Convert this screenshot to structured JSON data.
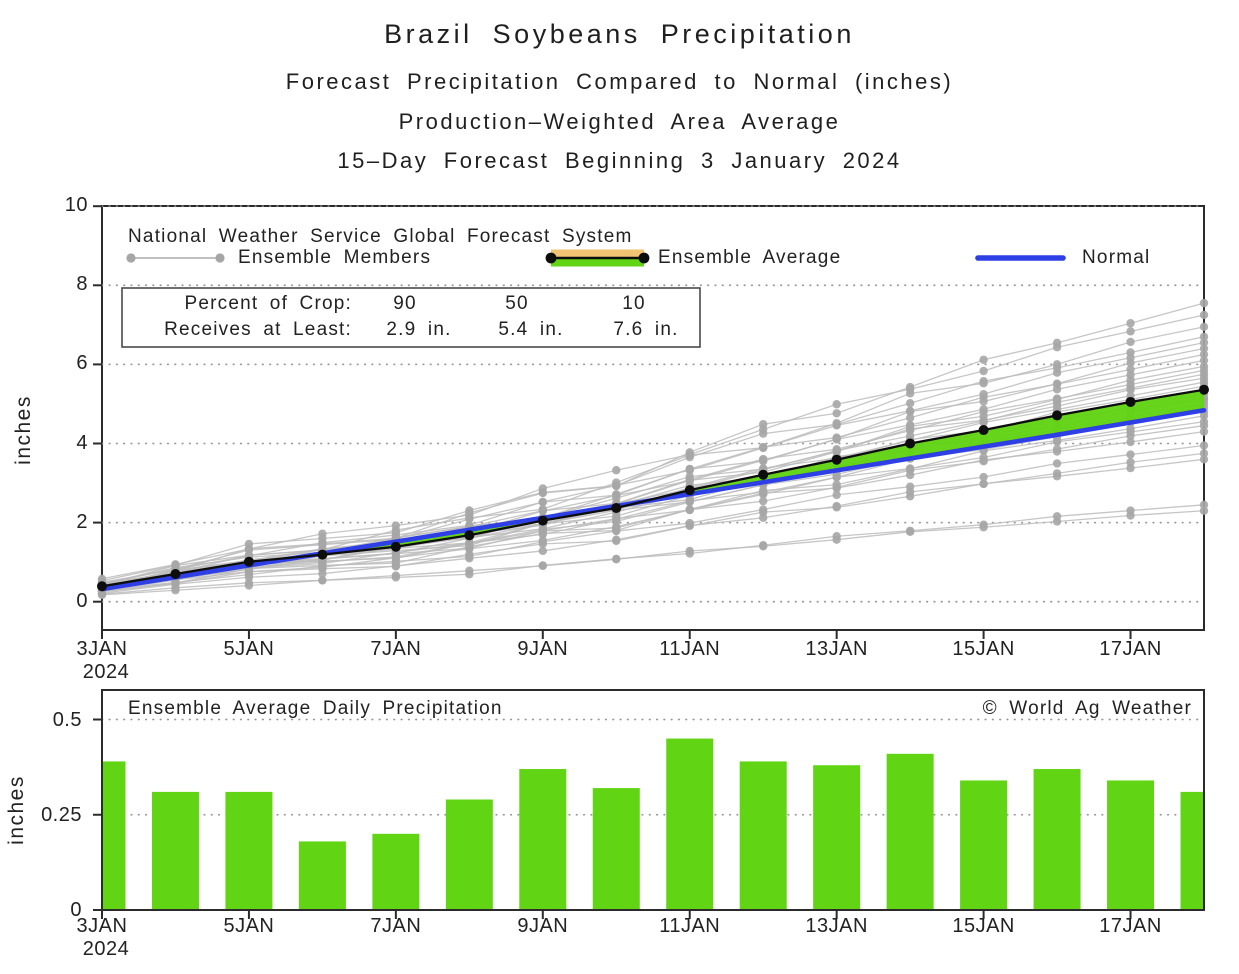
{
  "titles": {
    "line1": "Brazil Soybeans Precipitation",
    "line2": "Forecast Precipitation Compared to Normal (inches)",
    "line3": "Production–Weighted Area Average",
    "line4": "15–Day Forecast Beginning 3 January 2024"
  },
  "top_chart": {
    "source_label": "National Weather Service Global Forecast System",
    "legend": [
      {
        "label": "Ensemble Members"
      },
      {
        "label": "Ensemble Average"
      },
      {
        "label": "Normal"
      }
    ],
    "stats_box": {
      "row1_label": "Percent of Crop:",
      "row1_values": [
        "90",
        "50",
        "10"
      ],
      "row2_label": "Receives at Least:",
      "row2_values": [
        "2.9 in.",
        "5.4 in.",
        "7.6 in."
      ]
    },
    "ylabel": "inches",
    "ytick_labels": [
      "0",
      "2",
      "4",
      "6",
      "8",
      "10"
    ],
    "xtick_labels": [
      "3JAN",
      "5JAN",
      "7JAN",
      "9JAN",
      "11JAN",
      "13JAN",
      "15JAN",
      "17JAN"
    ],
    "year_label": "2024"
  },
  "bottom_chart": {
    "inside_title": "Ensemble Average Daily Precipitation",
    "credit": "© World Ag Weather",
    "ylabel": "inches",
    "ytick_labels": [
      "0",
      "0.25",
      "0.5"
    ],
    "xtick_labels": [
      "3JAN",
      "5JAN",
      "7JAN",
      "9JAN",
      "11JAN",
      "13JAN",
      "15JAN",
      "17JAN"
    ],
    "year_label": "2024"
  },
  "colors": {
    "green": "#61d414",
    "orange": "#f2c373",
    "blue": "#2e3fe6",
    "member_line": "#bcbcbc",
    "member_dot": "#a6a6a6",
    "average": "#0d0d0d",
    "frame": "#2b2b2b",
    "gridline": "#8f8f8f",
    "text": "#1f1f1f"
  },
  "chart_data": [
    {
      "type": "line",
      "title": "Forecast Precipitation Compared to Normal (inches), cumulative",
      "x_days": [
        3,
        4,
        5,
        6,
        7,
        8,
        9,
        10,
        11,
        12,
        13,
        14,
        15,
        16,
        17,
        18
      ],
      "x_month": "JAN 2024",
      "xtick_days": [
        3,
        5,
        7,
        9,
        11,
        13,
        15,
        17
      ],
      "ylabel": "inches",
      "ylim": [
        0,
        10
      ],
      "yticks": [
        0,
        2,
        4,
        6,
        8,
        10
      ],
      "grid": "dotted-horizontal",
      "legend_position": "top-inside",
      "series": [
        {
          "name": "Ensemble Average",
          "values": [
            0.39,
            0.7,
            1.01,
            1.19,
            1.39,
            1.68,
            2.05,
            2.37,
            2.82,
            3.21,
            3.59,
            4.0,
            4.34,
            4.71,
            5.05,
            5.36
          ]
        },
        {
          "name": "Normal",
          "values": [
            0.32,
            0.62,
            0.92,
            1.22,
            1.52,
            1.82,
            2.12,
            2.42,
            2.72,
            3.02,
            3.32,
            3.62,
            3.92,
            4.22,
            4.53,
            4.84
          ]
        }
      ],
      "ensemble_member_final_values": [
        2.3,
        2.45,
        3.6,
        3.75,
        3.95,
        4.3,
        4.45,
        4.55,
        4.7,
        4.8,
        4.9,
        5.0,
        5.1,
        5.15,
        5.25,
        5.35,
        5.45,
        5.55,
        5.65,
        5.75,
        5.85,
        5.95,
        6.1,
        6.25,
        6.4,
        6.55,
        6.7,
        6.95,
        7.25,
        7.55
      ],
      "percent_of_crop_receives_at_least": {
        "90": "2.9 in.",
        "50": "5.4 in.",
        "10": "7.6 in."
      }
    },
    {
      "type": "bar",
      "title": "Ensemble Average Daily Precipitation",
      "x_days": [
        3,
        4,
        5,
        6,
        7,
        8,
        9,
        10,
        11,
        12,
        13,
        14,
        15,
        16,
        17,
        18
      ],
      "x_month": "JAN 2024",
      "xtick_days": [
        3,
        5,
        7,
        9,
        11,
        13,
        15,
        17
      ],
      "ylabel": "inches",
      "ylim": [
        0,
        0.58
      ],
      "yticks": [
        0,
        0.25,
        0.5
      ],
      "grid": "dotted-horizontal",
      "values": [
        0.39,
        0.31,
        0.31,
        0.18,
        0.2,
        0.29,
        0.37,
        0.32,
        0.45,
        0.39,
        0.38,
        0.41,
        0.34,
        0.37,
        0.34,
        0.31
      ]
    }
  ]
}
